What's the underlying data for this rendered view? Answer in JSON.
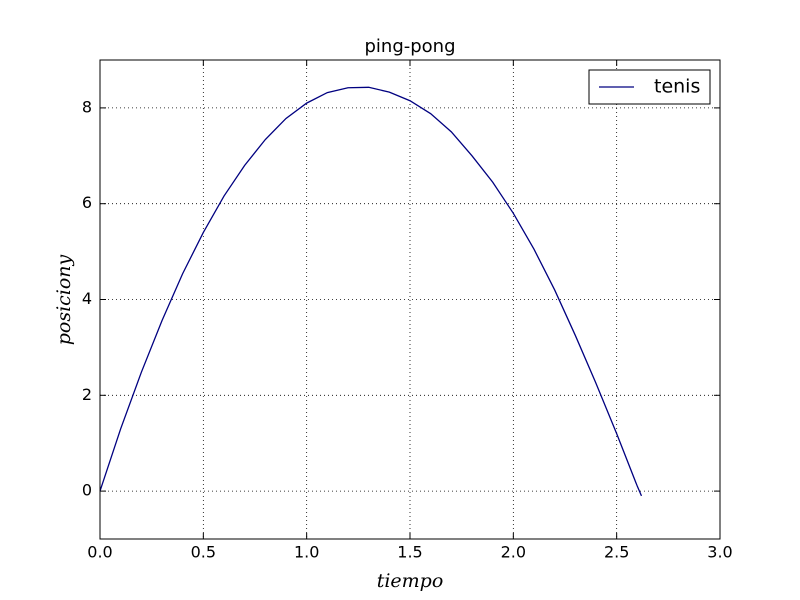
{
  "chart_data": {
    "type": "line",
    "title": "ping-pong",
    "x_label": "tiempo",
    "y_label": "posiciony",
    "x": [
      0,
      0.1,
      0.2,
      0.3,
      0.4,
      0.5,
      0.6,
      0.7,
      0.8,
      0.9,
      1.0,
      1.1,
      1.2,
      1.3,
      1.4,
      1.5,
      1.6,
      1.7,
      1.8,
      1.9,
      2.0,
      2.1,
      2.2,
      2.3,
      2.4,
      2.5,
      2.6,
      2.62
    ],
    "series": [
      {
        "name": "tenis",
        "color": "#000080",
        "values": [
          0,
          1.3,
          2.48,
          3.56,
          4.54,
          5.4,
          6.16,
          6.8,
          7.34,
          7.78,
          8.1,
          8.32,
          8.42,
          8.43,
          8.33,
          8.15,
          7.88,
          7.5,
          7.0,
          6.45,
          5.8,
          5.05,
          4.2,
          3.25,
          2.25,
          1.2,
          0.1,
          -0.1
        ]
      }
    ],
    "xlim": [
      0,
      3
    ],
    "ylim": [
      -1,
      9
    ],
    "xticks": [
      {
        "value": 0,
        "label": "0.0"
      },
      {
        "value": 0.5,
        "label": "0.5"
      },
      {
        "value": 1,
        "label": "1.0"
      },
      {
        "value": 1.5,
        "label": "1.5"
      },
      {
        "value": 2,
        "label": "2.0"
      },
      {
        "value": 2.5,
        "label": "2.5"
      },
      {
        "value": 3,
        "label": "3.0"
      }
    ],
    "yticks": [
      0,
      2,
      4,
      6,
      8
    ],
    "grid": true,
    "legend": "upper right"
  }
}
